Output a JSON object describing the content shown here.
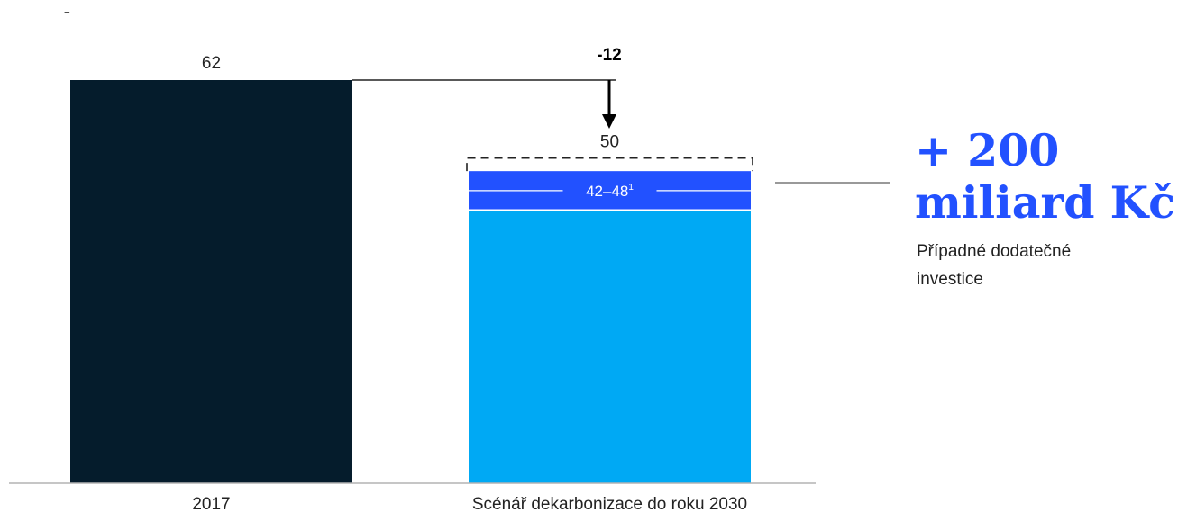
{
  "header": {
    "mark": "‾"
  },
  "chart_data": {
    "type": "bar",
    "categories": [
      "2017",
      "Scénář dekarbonizace do roku 2030"
    ],
    "values": [
      62,
      50
    ],
    "data_labels": [
      "62",
      "50"
    ],
    "ylim": [
      0,
      62
    ],
    "grid": false,
    "delta": {
      "value": -12,
      "label": "-12"
    },
    "segments": [
      {
        "name": "base",
        "value": 42,
        "color": "#00a9f4"
      },
      {
        "name": "range",
        "value": 6,
        "label": "42–48",
        "footnote": "1",
        "color": "#2251ff"
      },
      {
        "name": "uncertainty",
        "value": 2,
        "style": "dashed"
      }
    ],
    "colors": {
      "bar_2017": "#051c2c",
      "base": "#00a9f4",
      "range": "#2251ff",
      "axis": "#b3b3b3"
    }
  },
  "callout": {
    "amount_line1": "+ 200",
    "amount_line2": "miliard Kč",
    "description": "Případné dodatečné investice"
  }
}
